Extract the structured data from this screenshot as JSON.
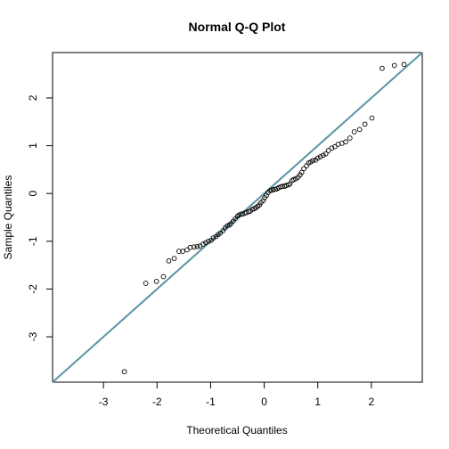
{
  "chart_data": {
    "type": "scatter",
    "title": "Normal Q-Q Plot",
    "xlabel": "Theoretical Quantiles",
    "ylabel": "Sample Quantiles",
    "xlim": [
      -3.95,
      2.95
    ],
    "ylim": [
      -3.95,
      2.95
    ],
    "x_ticks": [
      -3,
      -2,
      -1,
      0,
      1,
      2
    ],
    "y_ticks": [
      -3,
      -2,
      -1,
      0,
      1,
      2
    ],
    "grid": false,
    "reference_line": {
      "intercept": 0.0,
      "slope": 1.0,
      "color": "#5b95a5"
    },
    "point_color": "#000000",
    "points": [
      [
        -2.61,
        -3.73
      ],
      [
        -2.21,
        -1.88
      ],
      [
        -2.01,
        -1.84
      ],
      [
        -1.88,
        -1.74
      ],
      [
        -1.78,
        -1.41
      ],
      [
        -1.68,
        -1.36
      ],
      [
        -1.59,
        -1.21
      ],
      [
        -1.52,
        -1.21
      ],
      [
        -1.44,
        -1.18
      ],
      [
        -1.38,
        -1.13
      ],
      [
        -1.31,
        -1.12
      ],
      [
        -1.25,
        -1.11
      ],
      [
        -1.2,
        -1.1
      ],
      [
        -1.14,
        -1.06
      ],
      [
        -1.09,
        -1.03
      ],
      [
        -1.04,
        -1.0
      ],
      [
        -0.99,
        -0.98
      ],
      [
        -0.95,
        -0.93
      ],
      [
        -0.9,
        -0.9
      ],
      [
        -0.86,
        -0.86
      ],
      [
        -0.82,
        -0.83
      ],
      [
        -0.77,
        -0.78
      ],
      [
        -0.73,
        -0.72
      ],
      [
        -0.69,
        -0.68
      ],
      [
        -0.65,
        -0.66
      ],
      [
        -0.62,
        -0.63
      ],
      [
        -0.58,
        -0.58
      ],
      [
        -0.54,
        -0.53
      ],
      [
        -0.5,
        -0.48
      ],
      [
        -0.47,
        -0.45
      ],
      [
        -0.43,
        -0.43
      ],
      [
        -0.4,
        -0.43
      ],
      [
        -0.36,
        -0.41
      ],
      [
        -0.33,
        -0.4
      ],
      [
        -0.29,
        -0.38
      ],
      [
        -0.26,
        -0.37
      ],
      [
        -0.22,
        -0.33
      ],
      [
        -0.19,
        -0.32
      ],
      [
        -0.16,
        -0.3
      ],
      [
        -0.12,
        -0.27
      ],
      [
        -0.09,
        -0.24
      ],
      [
        -0.06,
        -0.19
      ],
      [
        -0.02,
        -0.15
      ],
      [
        0.01,
        -0.09
      ],
      [
        0.04,
        -0.04
      ],
      [
        0.07,
        0.02
      ],
      [
        0.11,
        0.06
      ],
      [
        0.14,
        0.07
      ],
      [
        0.17,
        0.08
      ],
      [
        0.21,
        0.09
      ],
      [
        0.24,
        0.1
      ],
      [
        0.27,
        0.12
      ],
      [
        0.31,
        0.14
      ],
      [
        0.34,
        0.15
      ],
      [
        0.38,
        0.15
      ],
      [
        0.41,
        0.17
      ],
      [
        0.45,
        0.18
      ],
      [
        0.48,
        0.2
      ],
      [
        0.52,
        0.27
      ],
      [
        0.55,
        0.29
      ],
      [
        0.59,
        0.31
      ],
      [
        0.63,
        0.34
      ],
      [
        0.67,
        0.39
      ],
      [
        0.7,
        0.44
      ],
      [
        0.74,
        0.52
      ],
      [
        0.79,
        0.58
      ],
      [
        0.83,
        0.64
      ],
      [
        0.87,
        0.66
      ],
      [
        0.91,
        0.69
      ],
      [
        0.96,
        0.7
      ],
      [
        1.0,
        0.74
      ],
      [
        1.05,
        0.77
      ],
      [
        1.1,
        0.8
      ],
      [
        1.15,
        0.83
      ],
      [
        1.2,
        0.9
      ],
      [
        1.26,
        0.95
      ],
      [
        1.32,
        0.98
      ],
      [
        1.38,
        1.03
      ],
      [
        1.45,
        1.05
      ],
      [
        1.52,
        1.08
      ],
      [
        1.6,
        1.16
      ],
      [
        1.68,
        1.29
      ],
      [
        1.78,
        1.34
      ],
      [
        1.88,
        1.45
      ],
      [
        2.01,
        1.58
      ],
      [
        2.2,
        2.62
      ],
      [
        2.43,
        2.68
      ],
      [
        2.61,
        2.7
      ]
    ]
  }
}
